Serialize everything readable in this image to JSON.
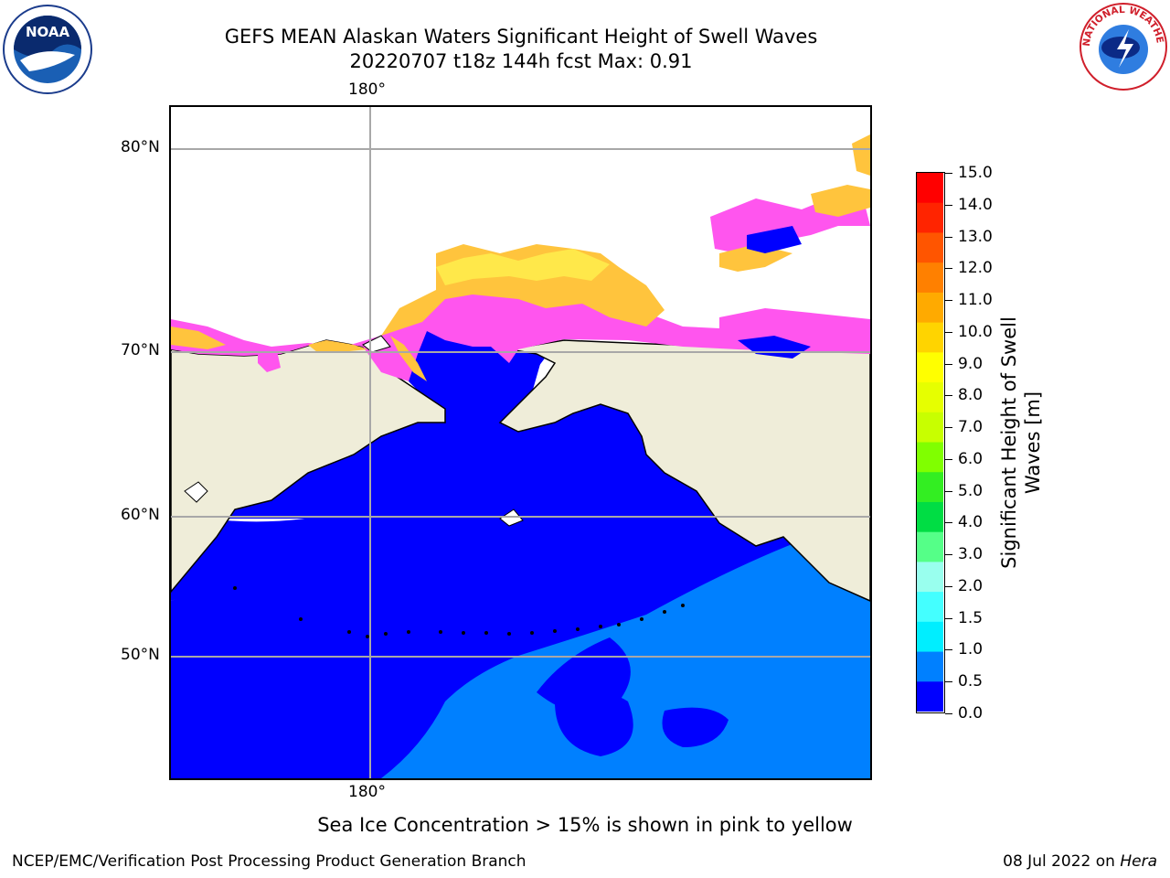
{
  "title": {
    "line1": "GEFS MEAN Alaskan Waters Significant Height of Swell Waves",
    "line2": "20220707 t18z 144h fcst   Max: 0.91"
  },
  "map": {
    "lon_label_top": "180°",
    "lon_label_bottom": "180°",
    "lat_labels": [
      "80°N",
      "70°N",
      "60°N",
      "50°N"
    ],
    "colors": {
      "land": "#efedd9",
      "sea_low": "#0000ff",
      "sea_mid": "#0080ff",
      "ice_pink": "#ff55ee",
      "ice_orange": "#ffc43d",
      "ice_yellow": "#ffe84a",
      "grid": "#a8a8a8"
    }
  },
  "colorbar": {
    "title": "Significant Height of Swell Waves [m]",
    "tick_labels": [
      "15.0",
      "14.0",
      "13.0",
      "12.0",
      "11.0",
      "10.0",
      "9.0",
      "8.0",
      "7.0",
      "6.0",
      "5.0",
      "4.0",
      "3.0",
      "2.0",
      "1.5",
      "1.0",
      "0.5",
      "0.0"
    ],
    "colors": [
      "#ff0000",
      "#ff2400",
      "#ff5500",
      "#ff8000",
      "#ffaa00",
      "#ffd400",
      "#ffff00",
      "#e6ff00",
      "#c8ff00",
      "#80ff00",
      "#33ee22",
      "#00dd44",
      "#55ff88",
      "#99ffee",
      "#44ffff",
      "#00eeff",
      "#0080ff",
      "#0000ff"
    ]
  },
  "ice_note": "Sea Ice Concentration > 15% is shown in pink to yellow",
  "footer": {
    "left": "NCEP/EMC/Verification Post Processing Product Generation Branch",
    "right_date": "08 Jul 2022 on ",
    "right_host": "Hera"
  },
  "logos": {
    "noaa_text": "NOAA",
    "nws_text": "NATIONAL WEATHER SERVICE"
  }
}
